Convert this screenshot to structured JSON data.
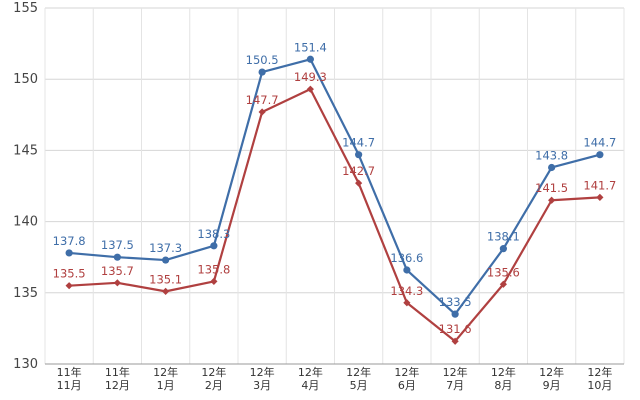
{
  "chart_data": {
    "type": "line",
    "title": "",
    "xlabel": "",
    "ylabel": "",
    "ylim": [
      130,
      155
    ],
    "yticks": [
      130,
      135,
      140,
      145,
      150,
      155
    ],
    "grid": true,
    "categories": [
      [
        "11年",
        "11月"
      ],
      [
        "11年",
        "12月"
      ],
      [
        "12年",
        "1月"
      ],
      [
        "12年",
        "2月"
      ],
      [
        "12年",
        "3月"
      ],
      [
        "12年",
        "4月"
      ],
      [
        "12年",
        "5月"
      ],
      [
        "12年",
        "6月"
      ],
      [
        "12年",
        "7月"
      ],
      [
        "12年",
        "8月"
      ],
      [
        "12年",
        "9月"
      ],
      [
        "12年",
        "10月"
      ]
    ],
    "series": [
      {
        "color": "#3f6ea8",
        "marker": "circle",
        "values": [
          137.8,
          137.5,
          137.3,
          138.3,
          150.5,
          151.4,
          144.7,
          136.6,
          133.5,
          138.1,
          143.8,
          144.7
        ]
      },
      {
        "color": "#b04040",
        "marker": "diamond",
        "values": [
          135.5,
          135.7,
          135.1,
          135.8,
          147.7,
          149.3,
          142.7,
          134.3,
          131.6,
          135.6,
          141.5,
          141.7
        ]
      }
    ]
  }
}
